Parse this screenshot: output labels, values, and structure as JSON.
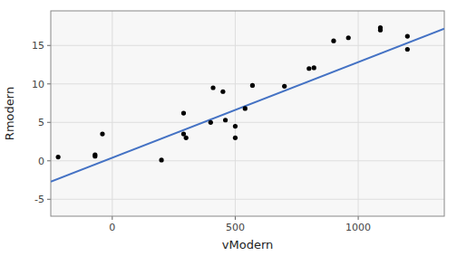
{
  "chart_data": {
    "type": "scatter",
    "xlabel": "vModern",
    "ylabel": "Rmodern",
    "series": [
      {
        "type": "scatter",
        "color": "#000000",
        "x": [
          -220,
          -70,
          -70,
          -40,
          200,
          290,
          290,
          300,
          400,
          410,
          450,
          460,
          500,
          500,
          540,
          570,
          700,
          800,
          820,
          900,
          960,
          1090,
          1090,
          1200,
          1200
        ],
        "values": [
          0.5,
          0.8,
          0.6,
          3.5,
          0.1,
          3.5,
          6.2,
          3.0,
          5.0,
          9.5,
          9.0,
          5.3,
          4.5,
          3.0,
          6.8,
          9.8,
          9.7,
          12.0,
          12.1,
          15.6,
          16.0,
          17.0,
          17.3,
          14.5,
          16.2
        ]
      },
      {
        "type": "line",
        "color": "#4472C4",
        "x": [
          -250,
          1350
        ],
        "values": [
          -2.71,
          17.194
        ]
      }
    ],
    "xlim": [
      -250,
      1350
    ],
    "ylim": [
      -7.2,
      19.5
    ],
    "xticks": [
      0,
      500,
      1000
    ],
    "yticks": [
      -5,
      0,
      5,
      10,
      15
    ],
    "grid": true
  }
}
